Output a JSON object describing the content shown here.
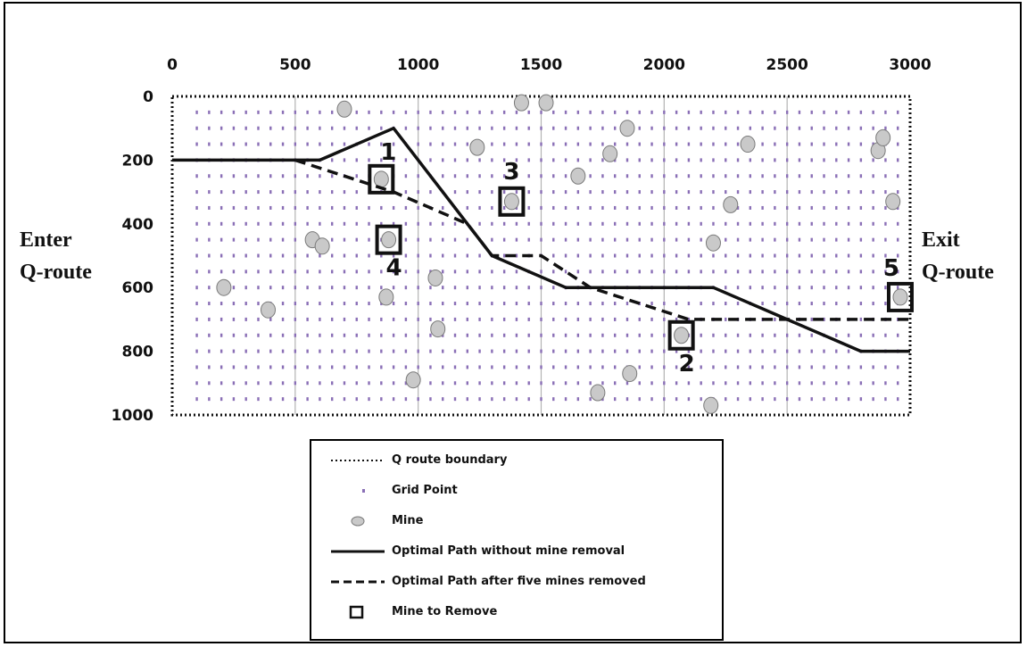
{
  "chart_data": {
    "type": "scatter",
    "x_ticks": [
      "0",
      "500",
      "1000",
      "1500",
      "2000",
      "2500",
      "3000"
    ],
    "y_ticks": [
      "0",
      "200",
      "400",
      "600",
      "800",
      "1000"
    ],
    "xlim": [
      0,
      3000
    ],
    "ylim": [
      0,
      1000
    ],
    "y_inverted": true,
    "grid": true,
    "left_label": [
      "Enter",
      "Q-route"
    ],
    "right_label": [
      "Exit",
      "Q-route"
    ],
    "grid_spacing": 100,
    "mines": [
      [
        210,
        600
      ],
      [
        390,
        670
      ],
      [
        700,
        40
      ],
      [
        570,
        450
      ],
      [
        610,
        470
      ],
      [
        850,
        260
      ],
      [
        870,
        630
      ],
      [
        880,
        450
      ],
      [
        1070,
        570
      ],
      [
        1080,
        730
      ],
      [
        980,
        890
      ],
      [
        1240,
        160
      ],
      [
        1420,
        20
      ],
      [
        1520,
        20
      ],
      [
        1380,
        330
      ],
      [
        1650,
        250
      ],
      [
        1780,
        180
      ],
      [
        1850,
        100
      ],
      [
        1730,
        930
      ],
      [
        1860,
        870
      ],
      [
        2070,
        750
      ],
      [
        2190,
        970
      ],
      [
        2200,
        460
      ],
      [
        2270,
        340
      ],
      [
        2340,
        150
      ],
      [
        2870,
        170
      ],
      [
        2890,
        130
      ],
      [
        2930,
        330
      ],
      [
        2960,
        630
      ]
    ],
    "series": [
      {
        "name": "Optimal Path without mine removal",
        "style": "solid",
        "points": [
          [
            0,
            200
          ],
          [
            600,
            200
          ],
          [
            900,
            100
          ],
          [
            1200,
            400
          ],
          [
            1300,
            500
          ],
          [
            1600,
            600
          ],
          [
            2200,
            600
          ],
          [
            2500,
            700
          ],
          [
            2800,
            800
          ],
          [
            3000,
            800
          ]
        ]
      },
      {
        "name": "Optimal Path after five mines removed",
        "style": "dashed",
        "points": [
          [
            500,
            200
          ],
          [
            900,
            300
          ],
          [
            1200,
            400
          ],
          [
            1300,
            500
          ],
          [
            1500,
            500
          ],
          [
            1700,
            600
          ],
          [
            2100,
            700
          ],
          [
            3000,
            700
          ]
        ]
      }
    ],
    "removals": [
      {
        "label": "1",
        "x": 850,
        "y": 260,
        "label_side": "top-right"
      },
      {
        "label": "2",
        "x": 2070,
        "y": 750,
        "label_side": "bottom-right"
      },
      {
        "label": "3",
        "x": 1380,
        "y": 330,
        "label_side": "top"
      },
      {
        "label": "4",
        "x": 880,
        "y": 450,
        "label_side": "bottom"
      },
      {
        "label": "5",
        "x": 2960,
        "y": 630,
        "label_side": "top-left"
      }
    ],
    "legend": [
      {
        "label": "Q route boundary",
        "symbol": "dotted-line"
      },
      {
        "label": "Grid Point",
        "symbol": "grid-point"
      },
      {
        "label": "Mine",
        "symbol": "mine"
      },
      {
        "label": "Optimal Path without mine removal",
        "symbol": "solid-line"
      },
      {
        "label": "Optimal Path after five mines removed",
        "symbol": "dashed-line"
      },
      {
        "label": "Mine to Remove",
        "symbol": "square"
      }
    ],
    "colors": {
      "grid_point": "#8a6fb6",
      "mine_fill": "#c9c9c9",
      "mine_stroke": "#7a7a7a",
      "gridline": "#b3b3b3",
      "path": "#111111"
    }
  }
}
